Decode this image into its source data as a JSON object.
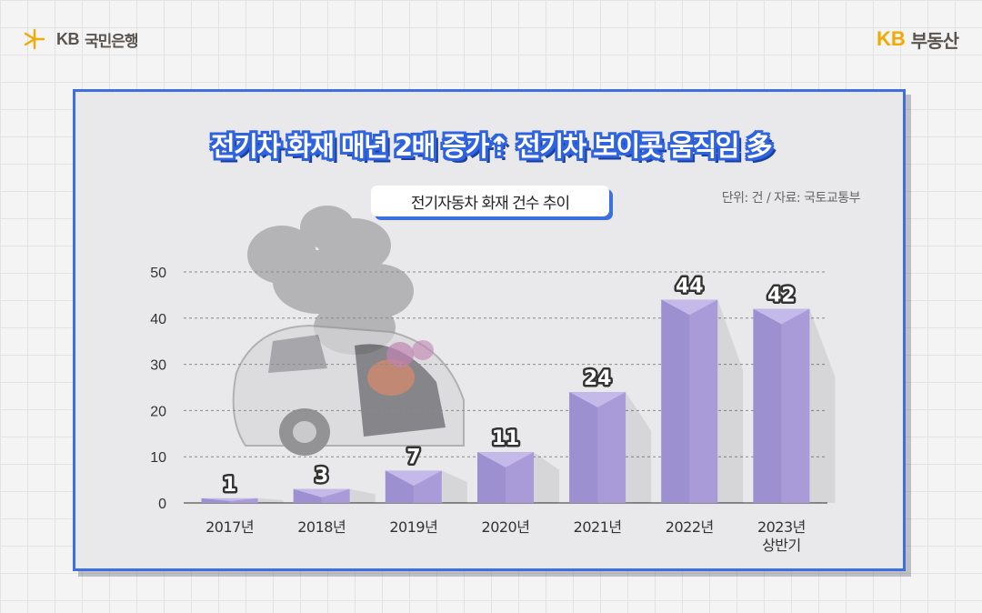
{
  "brand": {
    "left_logo_text": "KB",
    "left_name": "국민은행",
    "right_logo_text": "KB",
    "right_name": "부동산",
    "accent_color": "#f2a900"
  },
  "headline": "전기차 화재 매년 2배 증가⇡ 전기차 보이콧 움직임 多",
  "chart_data": {
    "type": "bar",
    "title": "전기자동차 화재 건수 추이",
    "note": "단위: 건 / 자료: 국토교통부",
    "categories": [
      "2017년",
      "2018년",
      "2019년",
      "2020년",
      "2021년",
      "2022년",
      "2023년 상반기"
    ],
    "category_lines": [
      [
        "2017년"
      ],
      [
        "2018년"
      ],
      [
        "2019년"
      ],
      [
        "2020년"
      ],
      [
        "2021년"
      ],
      [
        "2022년"
      ],
      [
        "2023년",
        "상반기"
      ]
    ],
    "values": [
      1,
      3,
      7,
      11,
      24,
      44,
      42
    ],
    "ylim": [
      0,
      50
    ],
    "yticks": [
      0,
      10,
      20,
      30,
      40,
      50
    ],
    "grid": true,
    "bar_color": "#a89bd8",
    "bar_shade_color": "#9386cc",
    "frame_color": "#3e6fe0"
  }
}
